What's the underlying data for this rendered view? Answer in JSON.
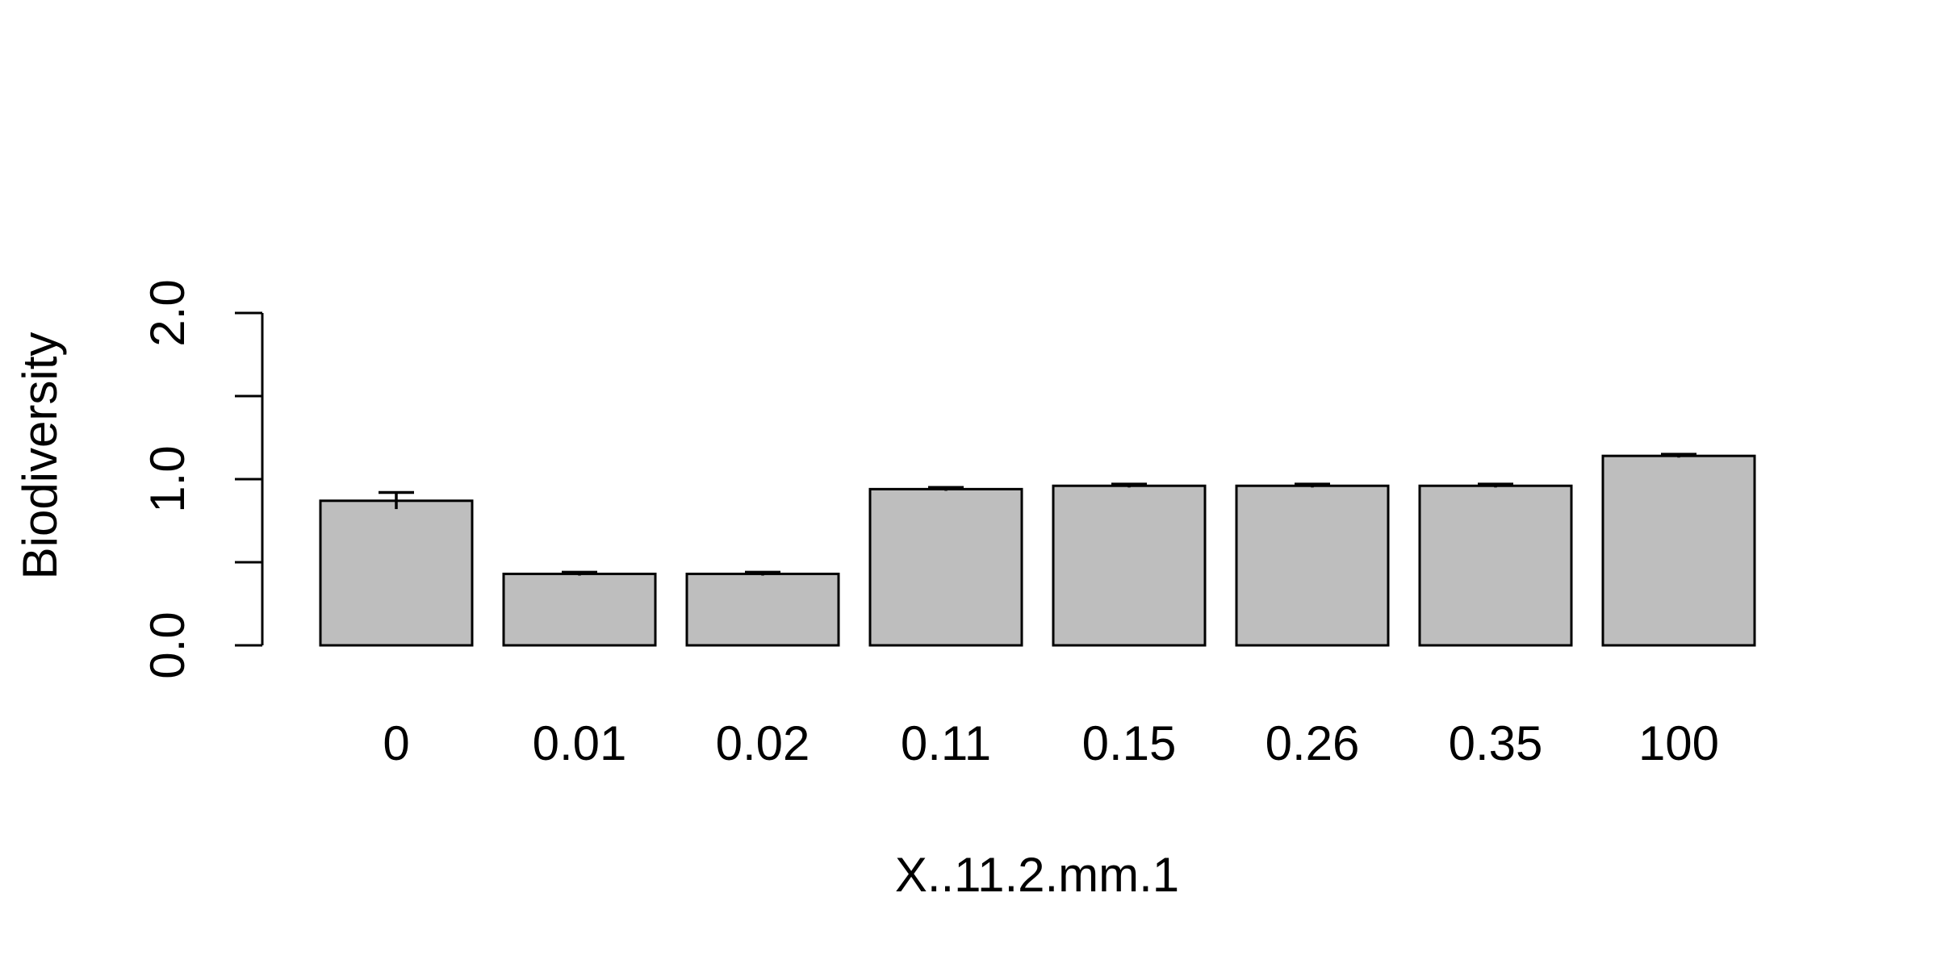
{
  "chart_data": {
    "type": "bar",
    "categories": [
      "0",
      "0.01",
      "0.02",
      "0.11",
      "0.15",
      "0.26",
      "0.35",
      "100"
    ],
    "values": [
      0.87,
      0.43,
      0.43,
      0.94,
      0.96,
      0.96,
      0.96,
      1.14
    ],
    "error": [
      0.05,
      0.01,
      0.01,
      0.01,
      0.01,
      0.01,
      0.01,
      0.01
    ],
    "xlabel": "X..11.2.mm.1",
    "ylabel": "Biodiversity",
    "ylim": [
      0,
      2
    ],
    "yticks": [
      0,
      0.5,
      1,
      1.5,
      2
    ],
    "ytick_labels": [
      "0.0",
      "",
      "1.0",
      "",
      "2.0"
    ],
    "grid": false,
    "colors": {
      "bar_fill": "#bebebe",
      "bar_stroke": "#000000",
      "axis": "#000000"
    }
  }
}
